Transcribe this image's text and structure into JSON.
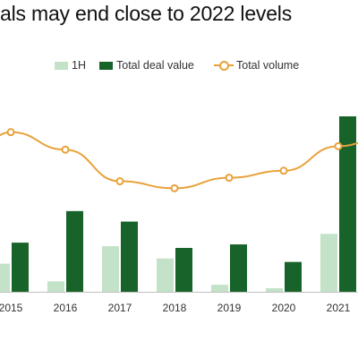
{
  "title": "als may end close to 2022 levels",
  "colors": {
    "h1": "#c3e2c7",
    "total_deal_value": "#17632a",
    "total_volume": "#e8a23a",
    "axis": "#bfbfbf"
  },
  "chart_data": {
    "type": "bar",
    "title": "als may end close to 2022 levels",
    "xlabel": "",
    "ylabel": "",
    "categories": [
      "2015",
      "2016",
      "2017",
      "2018",
      "2019",
      "2020",
      "2021"
    ],
    "legend": [
      "1H",
      "Total deal value",
      "Total volume"
    ],
    "legend_position": "top",
    "grid": false,
    "ylim": [
      0,
      100
    ],
    "series": [
      {
        "name": "1H",
        "type": "bar",
        "values": [
          16,
          6,
          26,
          19,
          4,
          2,
          33
        ]
      },
      {
        "name": "Total deal value",
        "type": "bar",
        "values": [
          28,
          46,
          40,
          25,
          27,
          17,
          100
        ]
      },
      {
        "name": "Total volume",
        "type": "line",
        "values": [
          91,
          81,
          63,
          59,
          65,
          69,
          83
        ]
      }
    ]
  }
}
